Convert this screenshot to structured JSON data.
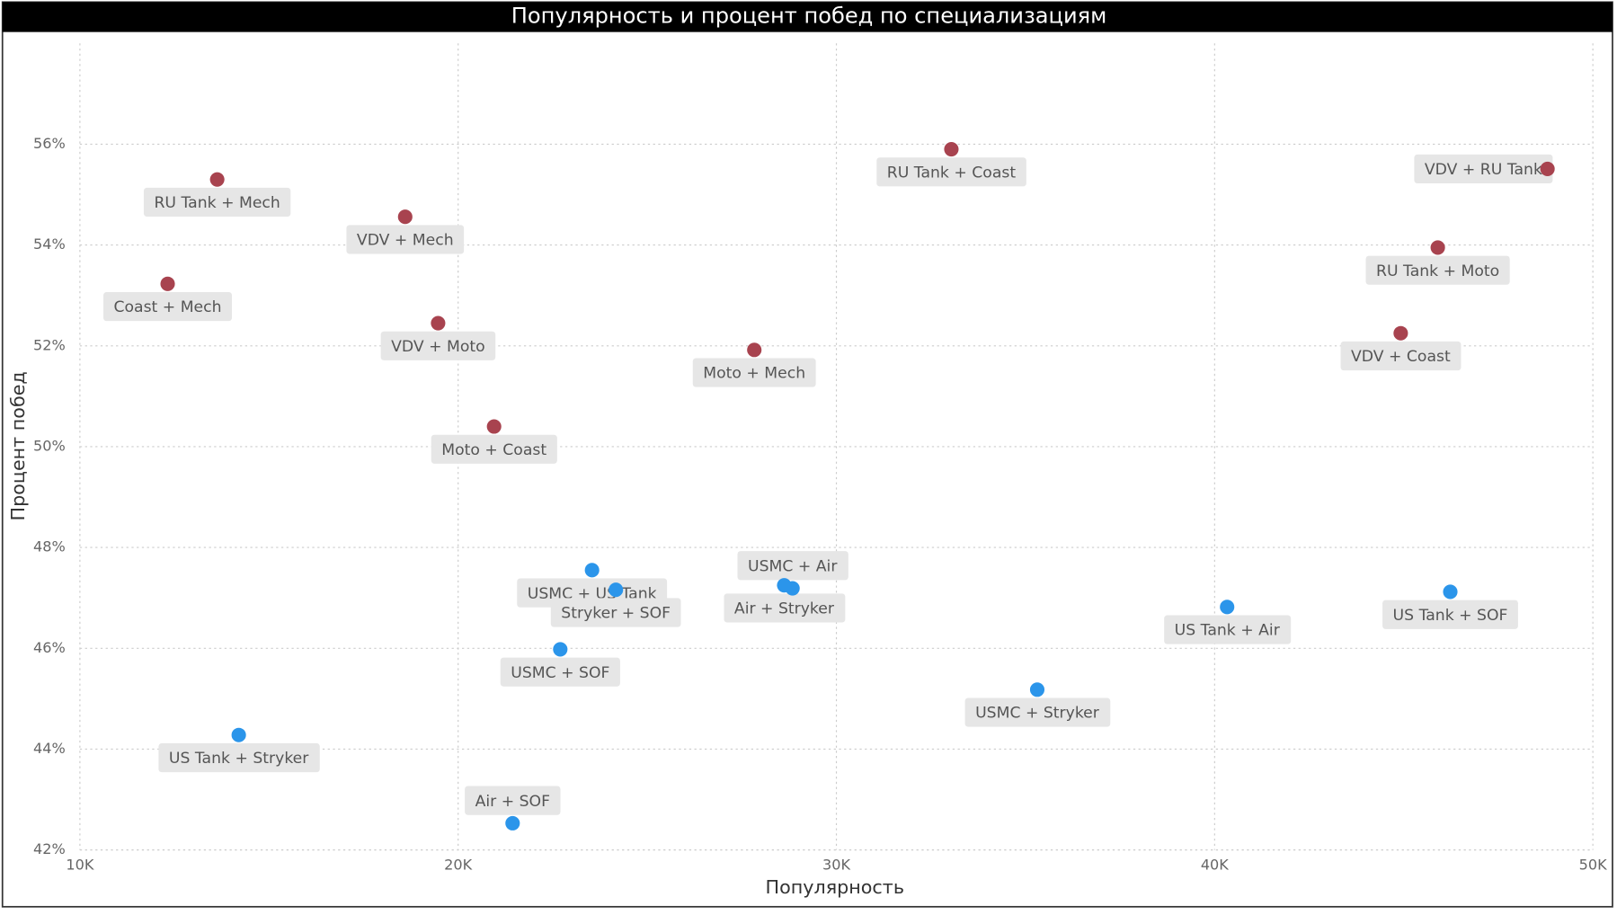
{
  "chart_data": {
    "type": "scatter",
    "title": "Популярность и процент побед по специализациям",
    "x_label": "Популярность",
    "y_label": "Процент побед",
    "xlim": [
      10000,
      50000
    ],
    "xticks": [
      {
        "value": 10000,
        "label": "10K"
      },
      {
        "value": 20000,
        "label": "20K"
      },
      {
        "value": 30000,
        "label": "30K"
      },
      {
        "value": 40000,
        "label": "40K"
      },
      {
        "value": 50000,
        "label": "50K"
      }
    ],
    "ylim": [
      42,
      58
    ],
    "yticks": [
      {
        "value": 42,
        "label": "42%"
      },
      {
        "value": 44,
        "label": "44%"
      },
      {
        "value": 46,
        "label": "46%"
      },
      {
        "value": 48,
        "label": "48%"
      },
      {
        "value": 50,
        "label": "50%"
      },
      {
        "value": 52,
        "label": "52%"
      },
      {
        "value": 54,
        "label": "54%"
      },
      {
        "value": 56,
        "label": "56%"
      }
    ],
    "grid": true,
    "series": [
      {
        "color": "#a8434f",
        "labels": [
          "RU Tank + Mech",
          "VDV + Mech",
          "Coast + Mech",
          "VDV + Moto",
          "Moto + Coast",
          "Moto + Mech",
          "RU Tank + Coast",
          "VDV + RU Tank",
          "RU Tank + Moto",
          "VDV + Coast"
        ],
        "x": [
          13630,
          18600,
          12320,
          19470,
          20950,
          27830,
          33040,
          48800,
          45900,
          44920
        ],
        "values": [
          55.3,
          54.56,
          53.23,
          52.45,
          50.4,
          51.92,
          55.9,
          55.51,
          53.95,
          52.25
        ]
      },
      {
        "color": "#2b95ea",
        "labels": [
          "USMC + US Tank",
          "Stryker + SOF",
          "USMC + Air",
          "Air + Stryker",
          "USMC + SOF",
          "US Tank + Stryker",
          "Air + SOF",
          "USMC + Stryker",
          "US Tank + Air",
          "US Tank + SOF"
        ],
        "x": [
          23540,
          24170,
          28840,
          28620,
          22700,
          14200,
          21440,
          35310,
          40330,
          46230
        ],
        "values": [
          47.55,
          47.16,
          47.19,
          47.25,
          45.98,
          44.28,
          42.53,
          45.18,
          46.82,
          47.12
        ]
      }
    ]
  }
}
